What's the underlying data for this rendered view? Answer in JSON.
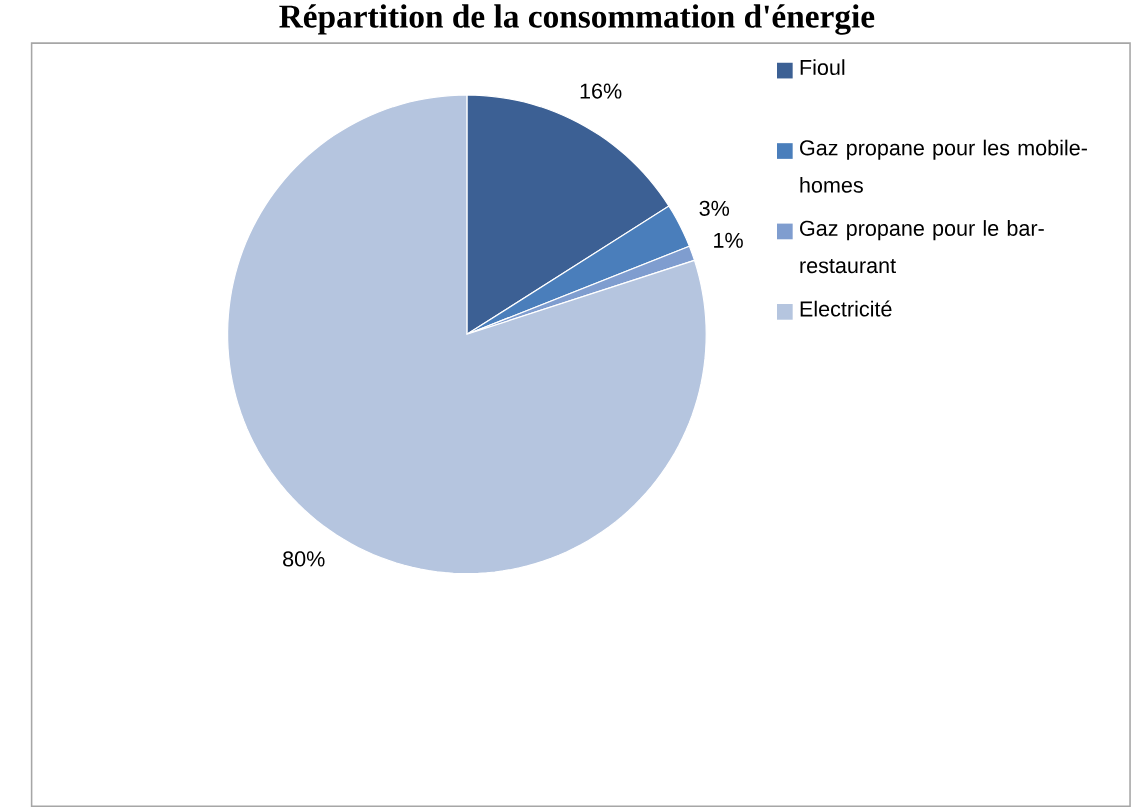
{
  "chart_data": {
    "type": "pie",
    "title": "Répartition de la consommation d'énergie",
    "categories": [
      "Fioul",
      "Gaz propane pour les mobile-homes",
      "Gaz propane pour le bar-restaurant",
      "Electricité"
    ],
    "values": [
      16,
      3,
      1,
      80
    ],
    "value_labels": [
      "16%",
      "3%",
      "1%",
      "80%"
    ],
    "colors": [
      "#3c6094",
      "#4a7ebb",
      "#7f9dcf",
      "#b5c5df"
    ],
    "legend": "right"
  }
}
